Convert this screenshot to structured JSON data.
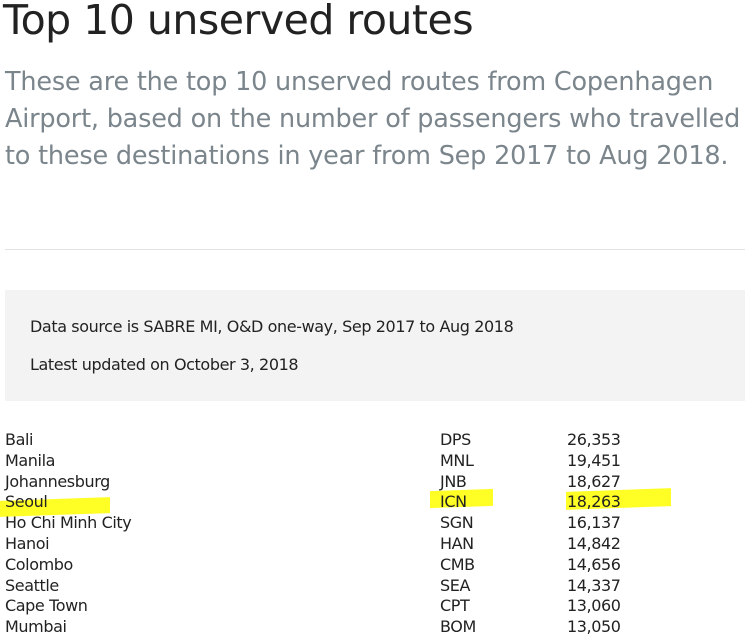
{
  "title": "Top 10 unserved routes",
  "subtitle": "These are the top 10 unserved routes from Copenhagen Airport, based on the number of passengers who travelled to these destinations in year from Sep 2017 to Aug 2018.",
  "info": {
    "source": "Data source is SABRE MI, O&D one-way, Sep 2017 to Aug 2018",
    "updated": "Latest updated on October 3, 2018"
  },
  "highlight_color": "#ffff00",
  "routes": [
    {
      "city": "Bali",
      "code": "DPS",
      "passengers": "26,353"
    },
    {
      "city": "Manila",
      "code": "MNL",
      "passengers": "19,451"
    },
    {
      "city": "Johannesburg",
      "code": "JNB",
      "passengers": "18,627"
    },
    {
      "city": "Seoul",
      "code": "ICN",
      "passengers": "18,263",
      "highlighted": true
    },
    {
      "city": "Ho Chi Minh City",
      "code": "SGN",
      "passengers": "16,137"
    },
    {
      "city": "Hanoi",
      "code": "HAN",
      "passengers": "14,842"
    },
    {
      "city": "Colombo",
      "code": "CMB",
      "passengers": "14,656"
    },
    {
      "city": "Seattle",
      "code": "SEA",
      "passengers": "14,337"
    },
    {
      "city": "Cape Town",
      "code": "CPT",
      "passengers": "13,060"
    },
    {
      "city": "Mumbai",
      "code": "BOM",
      "passengers": "13,050"
    }
  ]
}
